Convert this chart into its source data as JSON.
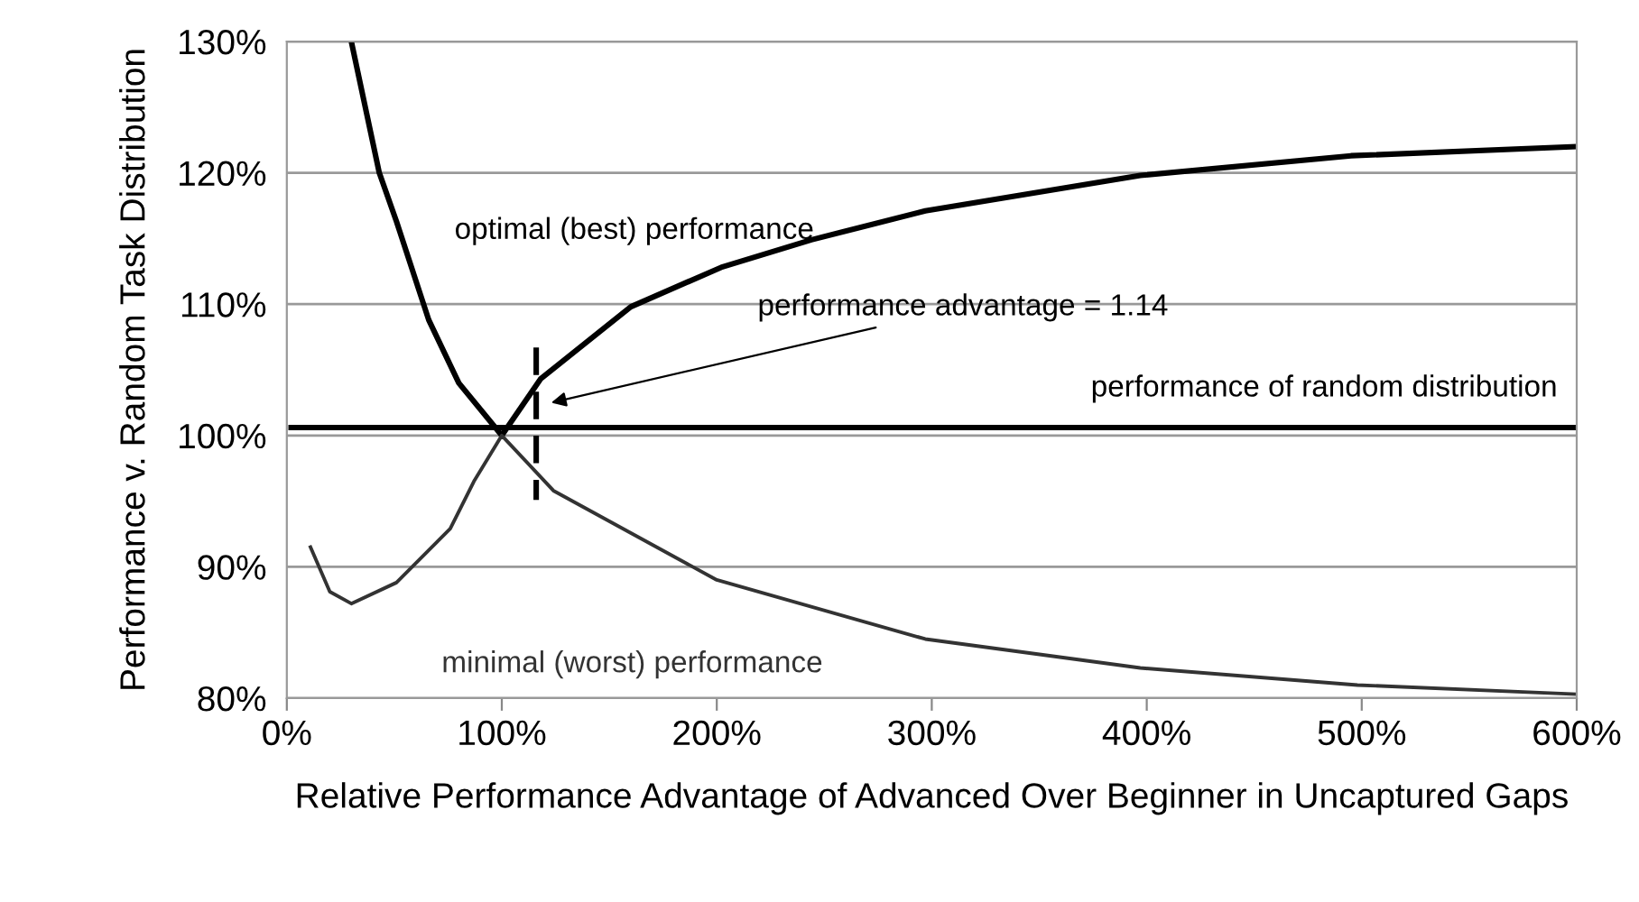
{
  "chart_data": {
    "type": "line",
    "xlabel": "Relative Performance Advantage of Advanced Over Beginner in Uncaptured Gaps",
    "ylabel": "Performance v. Random Task Distribution",
    "series": [
      {
        "name": "optimal (best) performance",
        "color": "#000000",
        "x": [
          30,
          43,
          51,
          66,
          80,
          100,
          118,
          160,
          202,
          244,
          297,
          397,
          495,
          600
        ],
        "values": [
          130,
          120,
          116.3,
          108.8,
          104,
          100,
          104.3,
          109.8,
          112.8,
          114.9,
          117.1,
          119.8,
          121.3,
          122
        ],
        "line_style": "solid"
      },
      {
        "name": "minimal (worst) performance",
        "color": "#333333",
        "x": [
          11,
          20,
          30,
          51,
          76,
          87,
          100,
          124,
          200,
          297,
          397,
          498,
          600
        ],
        "values": [
          91.5,
          88.1,
          87.2,
          88.8,
          92.9,
          96.5,
          100,
          95.8,
          89,
          84.5,
          82.3,
          81,
          80.3
        ],
        "line_style": "solid"
      },
      {
        "name": "performance of random distribution",
        "color": "#000000",
        "x": [
          2,
          600
        ],
        "values": [
          100.6,
          100.6
        ],
        "line_style": "solid"
      },
      {
        "color": "#000000",
        "x": [
          116,
          116
        ],
        "values": [
          106.7,
          95.1
        ],
        "line_style": "dashed"
      }
    ],
    "annotations": [
      "performance advantage = 1.14"
    ],
    "xlim": [
      0,
      600
    ],
    "xticks": [
      {
        "value": 0,
        "label": "0%"
      },
      {
        "value": 100,
        "label": "100%"
      },
      {
        "value": 200,
        "label": "200%"
      },
      {
        "value": 300,
        "label": "300%"
      },
      {
        "value": 400,
        "label": "400%"
      },
      {
        "value": 500,
        "label": "500%"
      },
      {
        "value": 600,
        "label": "600%"
      }
    ],
    "ylim": [
      80,
      130
    ],
    "yticks": [
      {
        "value": 80,
        "label": "80%"
      },
      {
        "value": 90,
        "label": "90%"
      },
      {
        "value": 100,
        "label": "100%"
      },
      {
        "value": 110,
        "label": "110%"
      },
      {
        "value": 120,
        "label": "120%"
      },
      {
        "value": 130,
        "label": "130%"
      }
    ],
    "grid": "y",
    "legend": false,
    "marker": "none"
  }
}
